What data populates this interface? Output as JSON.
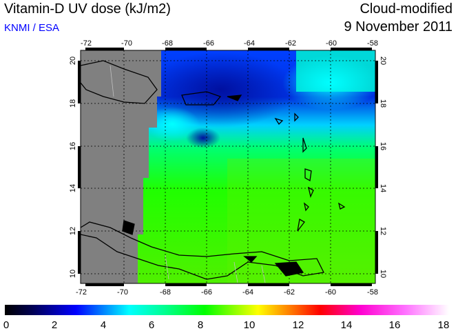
{
  "header": {
    "title": "Vitamin-D UV dose (kJ/m2)",
    "source": "KNMI / ESA",
    "mode": "Cloud-modified",
    "date": "9 November 2011"
  },
  "map": {
    "lon_labels": [
      "-72",
      "-70",
      "-68",
      "-66",
      "-64",
      "-62",
      "-60",
      "-58"
    ],
    "lat_labels": [
      "20",
      "18",
      "16",
      "14",
      "12",
      "10"
    ],
    "no_data_color": "#808080",
    "coast_color": "#000000",
    "border_color": "#c0c0c0"
  },
  "colorbar": {
    "labels": [
      "0",
      "2",
      "4",
      "6",
      "8",
      "10",
      "12",
      "14",
      "16",
      "18"
    ],
    "stops": [
      "#000000",
      "#000060",
      "#0000ff",
      "#00ffff",
      "#00ff80",
      "#00ff00",
      "#ffff00",
      "#ff8000",
      "#ff0000",
      "#ff00c0",
      "#ff80ff",
      "#ffffff"
    ]
  }
}
